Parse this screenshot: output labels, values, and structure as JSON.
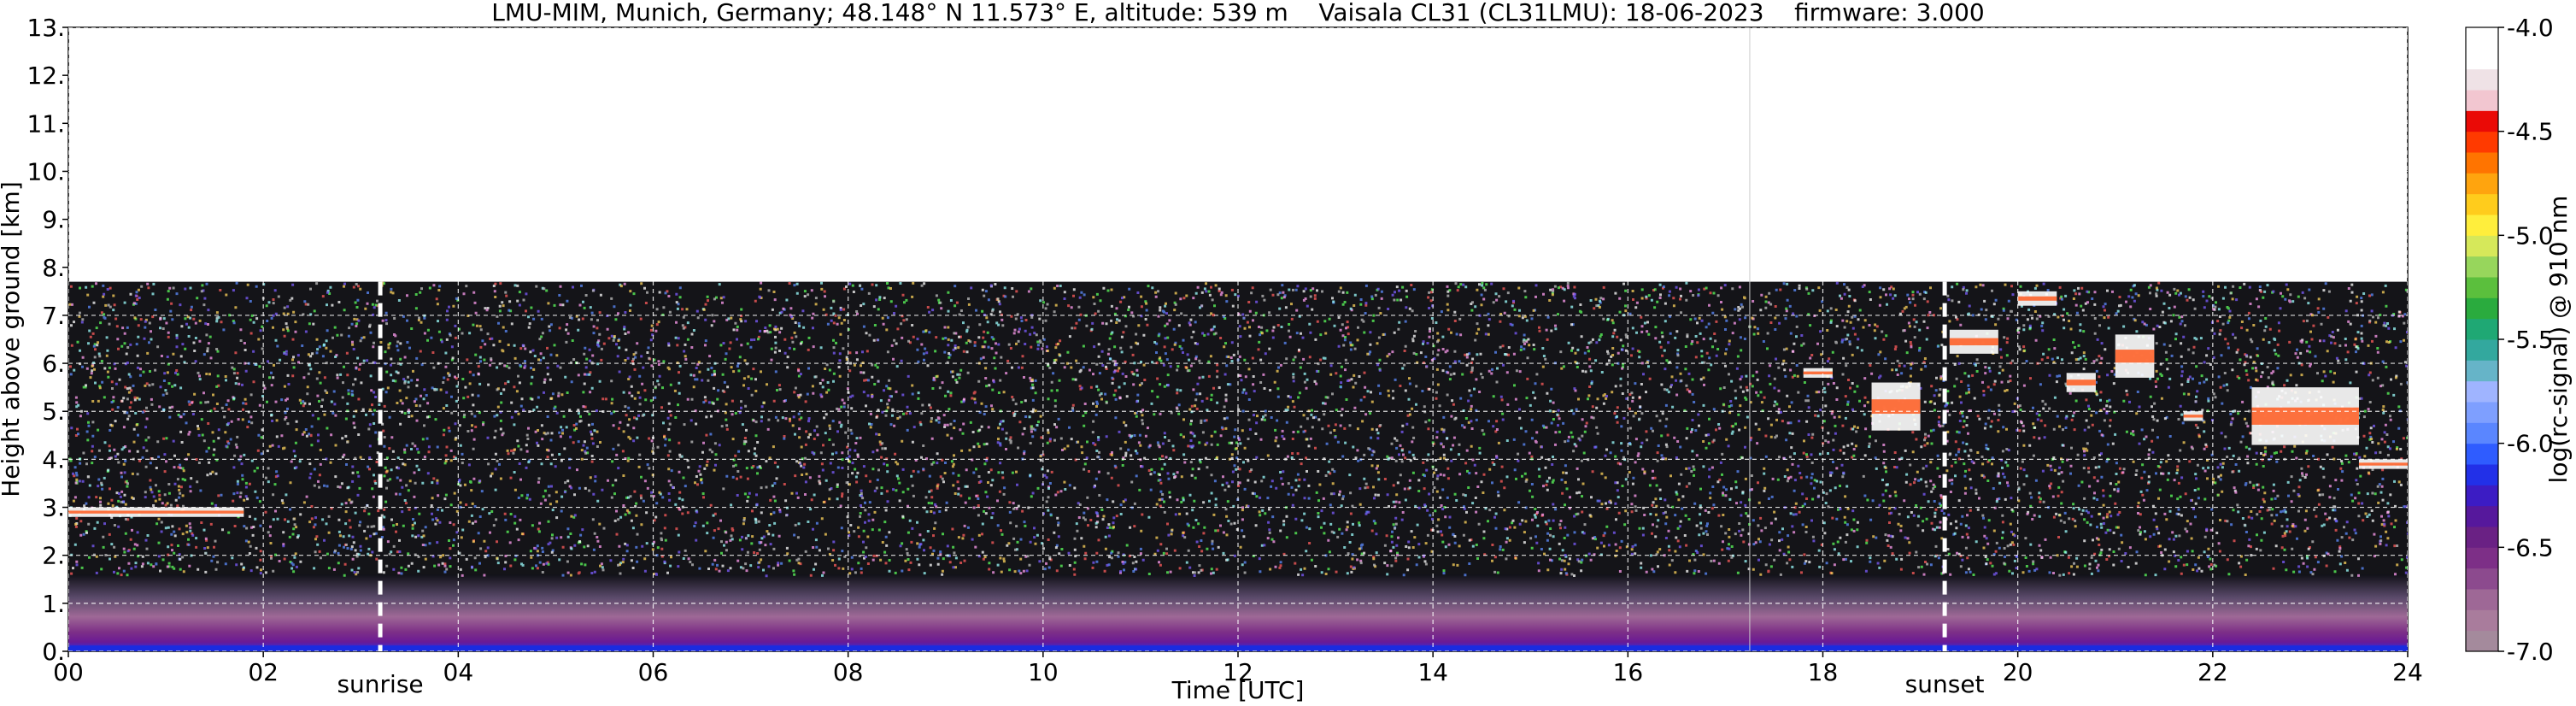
{
  "chart_data": {
    "type": "heatmap",
    "title": "LMU-MIM, Munich, Germany; 48.148° N 11.573° E, altitude: 539 m    Vaisala CL31 (CL31LMU): 18-06-2023    firmware: 3.000",
    "xlabel": "Time [UTC]",
    "ylabel": "Height above ground [km]",
    "xlim": [
      0,
      24
    ],
    "ylim": [
      0,
      13
    ],
    "x_ticks": [
      {
        "value": 0,
        "label": "00"
      },
      {
        "value": 2,
        "label": "02"
      },
      {
        "value": 4,
        "label": "04"
      },
      {
        "value": 6,
        "label": "06"
      },
      {
        "value": 8,
        "label": "08"
      },
      {
        "value": 10,
        "label": "10"
      },
      {
        "value": 12,
        "label": "12"
      },
      {
        "value": 14,
        "label": "14"
      },
      {
        "value": 16,
        "label": "16"
      },
      {
        "value": 18,
        "label": "18"
      },
      {
        "value": 20,
        "label": "20"
      },
      {
        "value": 22,
        "label": "22"
      },
      {
        "value": 24,
        "label": "24"
      }
    ],
    "y_ticks": [
      {
        "value": 0,
        "label": "0."
      },
      {
        "value": 1,
        "label": "1."
      },
      {
        "value": 2,
        "label": "2."
      },
      {
        "value": 3,
        "label": "3."
      },
      {
        "value": 4,
        "label": "4."
      },
      {
        "value": 5,
        "label": "5."
      },
      {
        "value": 6,
        "label": "6."
      },
      {
        "value": 7,
        "label": "7."
      },
      {
        "value": 8,
        "label": "8."
      },
      {
        "value": 9,
        "label": "9."
      },
      {
        "value": 10,
        "label": "10."
      },
      {
        "value": 11,
        "label": "11."
      },
      {
        "value": 12,
        "label": "12."
      },
      {
        "value": 13,
        "label": "13."
      }
    ],
    "grid": true,
    "data_top_km": 7.7,
    "annotations": [
      {
        "text": "sunrise",
        "x": 3.2
      },
      {
        "text": "sunset",
        "x": 19.25
      }
    ],
    "vline_x": 17.25,
    "colorbar": {
      "label": "log(rc-signal) @ 910 nm",
      "range": [
        -7.0,
        -4.0
      ],
      "ticks": [
        {
          "value": -4.0,
          "label": "-4.0"
        },
        {
          "value": -4.5,
          "label": "-4.5"
        },
        {
          "value": -5.0,
          "label": "-5.0"
        },
        {
          "value": -5.5,
          "label": "-5.5"
        },
        {
          "value": -6.0,
          "label": "-6.0"
        },
        {
          "value": -6.5,
          "label": "-6.5"
        },
        {
          "value": -7.0,
          "label": "-7.0"
        }
      ],
      "colors": [
        "#a48a9c",
        "#a97c9c",
        "#9e6896",
        "#8c4a8e",
        "#7d2f87",
        "#6a2184",
        "#56189c",
        "#3c1cc4",
        "#2230e8",
        "#2f5cff",
        "#5a86ff",
        "#7e9fff",
        "#9fb4ff",
        "#66b4c8",
        "#33a89e",
        "#1fa874",
        "#2aab3e",
        "#5bbf3d",
        "#97d65c",
        "#d6e85a",
        "#ffee3c",
        "#ffcc1c",
        "#ffa40e",
        "#ff7400",
        "#ff3a00",
        "#ea0a06",
        "#f2c6d0",
        "#efe2e6",
        "#ffffff",
        "#ffffff"
      ]
    },
    "features": [
      {
        "name": "aerosol layer",
        "x": [
          0,
          24
        ],
        "height_km": [
          0,
          0.6
        ]
      },
      {
        "name": "early cloud",
        "x": [
          0,
          1.8
        ],
        "height_km": [
          2.8,
          3.0
        ]
      },
      {
        "name": "cloud",
        "x": [
          17.8,
          18.1
        ],
        "height_km": [
          5.7,
          5.9
        ]
      },
      {
        "name": "cloud",
        "x": [
          18.5,
          19.0
        ],
        "height_km": [
          4.6,
          5.6
        ]
      },
      {
        "name": "cloud",
        "x": [
          19.3,
          19.8
        ],
        "height_km": [
          6.2,
          6.7
        ]
      },
      {
        "name": "cloud",
        "x": [
          20.0,
          20.4
        ],
        "height_km": [
          7.2,
          7.5
        ]
      },
      {
        "name": "cloud",
        "x": [
          20.5,
          20.8
        ],
        "height_km": [
          5.4,
          5.8
        ]
      },
      {
        "name": "cloud",
        "x": [
          21.0,
          21.4
        ],
        "height_km": [
          5.7,
          6.6
        ]
      },
      {
        "name": "cloud",
        "x": [
          21.7,
          21.9
        ],
        "height_km": [
          4.8,
          5.0
        ]
      },
      {
        "name": "cloud",
        "x": [
          22.4,
          23.5
        ],
        "height_km": [
          4.3,
          5.5
        ]
      },
      {
        "name": "cloud",
        "x": [
          23.5,
          24.0
        ],
        "height_km": [
          3.8,
          4.0
        ]
      }
    ]
  }
}
